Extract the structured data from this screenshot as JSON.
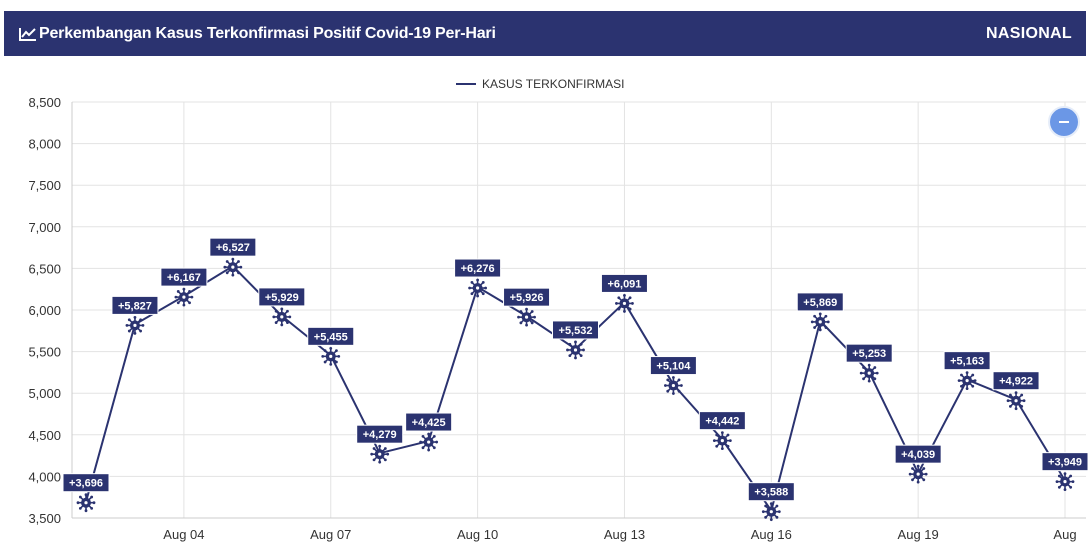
{
  "header": {
    "title": "Perkembangan Kasus Terkonfirmasi Positif Covid-19 Per-Hari",
    "region": "NASIONAL",
    "icon": "line-chart-icon"
  },
  "zoom_button": {
    "icon": "minus-icon"
  },
  "colors": {
    "header_bg": "#2b3370",
    "series": "#2b3370",
    "label_bg": "#2b3370",
    "grid": "#e3e3e3",
    "zoom": "#6b97e6"
  },
  "chart_data": {
    "type": "line",
    "title": "Perkembangan Kasus Terkonfirmasi Positif Covid-19 Per-Hari",
    "legend": "top-center",
    "grid": true,
    "ylim": [
      3500,
      8500
    ],
    "yticks": [
      "3,500",
      "4,000",
      "4,500",
      "5,000",
      "5,500",
      "6,000",
      "6,500",
      "7,000",
      "7,500",
      "8,000",
      "8,500"
    ],
    "xticks": [
      "Aug 04",
      "Aug 07",
      "Aug 10",
      "Aug 13",
      "Aug 16",
      "Aug 19",
      "Aug"
    ],
    "x": [
      "Aug 02",
      "Aug 03",
      "Aug 04",
      "Aug 05",
      "Aug 06",
      "Aug 07",
      "Aug 08",
      "Aug 09",
      "Aug 10",
      "Aug 11",
      "Aug 12",
      "Aug 13",
      "Aug 14",
      "Aug 15",
      "Aug 16",
      "Aug 17",
      "Aug 18",
      "Aug 19",
      "Aug 20",
      "Aug 21",
      "Aug 22"
    ],
    "series": [
      {
        "name": "KASUS TERKONFIRMASI",
        "values": [
          3696,
          5827,
          6167,
          6527,
          5929,
          5455,
          4279,
          4425,
          6276,
          5926,
          5532,
          6091,
          5104,
          4442,
          3588,
          5869,
          5253,
          4039,
          5163,
          4922,
          3949
        ],
        "labels": [
          "+3,696",
          "+5,827",
          "+6,167",
          "+6,527",
          "+5,929",
          "+5,455",
          "+4,279",
          "+4,425",
          "+6,276",
          "+5,926",
          "+5,532",
          "+6,091",
          "+5,104",
          "+4,442",
          "+3,588",
          "+5,869",
          "+5,253",
          "+4,039",
          "+5,163",
          "+4,922",
          "+3,949"
        ]
      }
    ]
  }
}
